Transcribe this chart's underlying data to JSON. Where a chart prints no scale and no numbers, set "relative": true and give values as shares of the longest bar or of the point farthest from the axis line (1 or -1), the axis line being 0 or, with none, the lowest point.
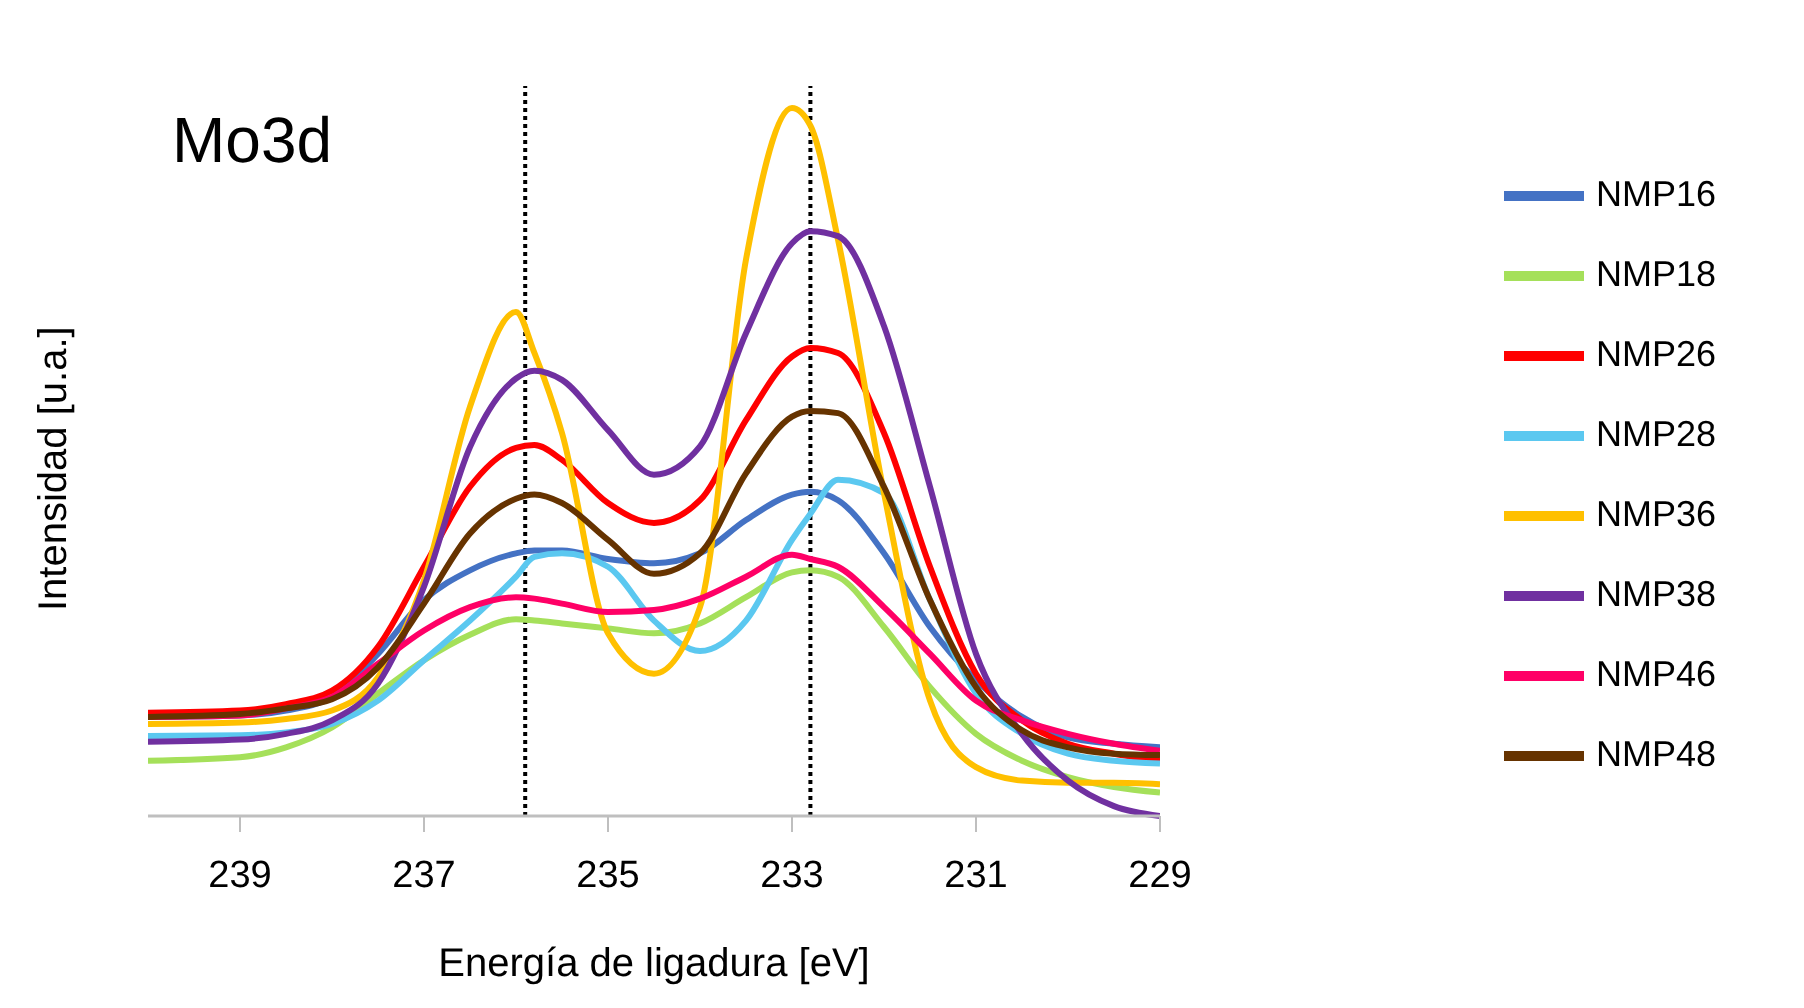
{
  "chart_data": {
    "type": "line",
    "title": "Mo3d",
    "xlabel": "Energía de ligadura [eV]",
    "ylabel": "Intensidad [u.a.]",
    "relative": true,
    "xlim": [
      240,
      229
    ],
    "xticks": [
      239,
      237,
      235,
      233,
      231,
      229
    ],
    "grid": false,
    "legend": "right",
    "marker": "none",
    "line_style": "solid",
    "x": [
      240,
      239,
      238.5,
      238,
      237.5,
      237,
      236.5,
      236,
      235.8,
      235.5,
      235,
      234.5,
      234,
      233.5,
      233,
      232.8,
      232.5,
      232,
      231.5,
      231,
      230.5,
      230,
      229.5,
      229
    ],
    "ref_lines": [
      {
        "axis": "x",
        "value": 235.9,
        "color": "#000000",
        "line_style": "dotted"
      },
      {
        "axis": "x",
        "value": 232.8,
        "color": "#000000",
        "line_style": "dotted"
      }
    ],
    "series": [
      {
        "name": "NMP16",
        "color": "#4472c4",
        "values": [
          0.14,
          0.142,
          0.149,
          0.168,
          0.229,
          0.305,
          0.347,
          0.371,
          0.375,
          0.375,
          0.363,
          0.357,
          0.371,
          0.418,
          0.454,
          0.458,
          0.446,
          0.371,
          0.267,
          0.192,
          0.14,
          0.111,
          0.102,
          0.097
        ]
      },
      {
        "name": "NMP18",
        "color": "#a5e05a",
        "values": [
          0.078,
          0.083,
          0.097,
          0.125,
          0.173,
          0.22,
          0.256,
          0.278,
          0.276,
          0.272,
          0.265,
          0.258,
          0.272,
          0.309,
          0.344,
          0.347,
          0.338,
          0.267,
          0.182,
          0.116,
          0.078,
          0.055,
          0.041,
          0.033
        ]
      },
      {
        "name": "NMP26",
        "color": "#ff0000",
        "values": [
          0.146,
          0.149,
          0.158,
          0.177,
          0.239,
          0.352,
          0.465,
          0.52,
          0.524,
          0.503,
          0.442,
          0.414,
          0.446,
          0.559,
          0.649,
          0.661,
          0.654,
          0.541,
          0.352,
          0.201,
          0.135,
          0.102,
          0.088,
          0.078
        ]
      },
      {
        "name": "NMP28",
        "color": "#5bc8f0",
        "values": [
          0.113,
          0.114,
          0.118,
          0.13,
          0.163,
          0.22,
          0.276,
          0.338,
          0.366,
          0.371,
          0.352,
          0.276,
          0.233,
          0.276,
          0.39,
          0.427,
          0.475,
          0.456,
          0.305,
          0.173,
          0.116,
          0.088,
          0.078,
          0.074
        ]
      },
      {
        "name": "NMP36",
        "color": "#ffc000",
        "values": [
          0.13,
          0.132,
          0.137,
          0.149,
          0.196,
          0.333,
          0.578,
          0.712,
          0.654,
          0.541,
          0.258,
          0.201,
          0.295,
          0.786,
          1.0,
          0.975,
          0.814,
          0.456,
          0.163,
          0.069,
          0.05,
          0.047,
          0.047,
          0.045
        ]
      },
      {
        "name": "NMP38",
        "color": "#7030a0",
        "values": [
          0.105,
          0.108,
          0.116,
          0.135,
          0.187,
          0.324,
          0.521,
          0.618,
          0.629,
          0.616,
          0.545,
          0.482,
          0.522,
          0.682,
          0.809,
          0.826,
          0.819,
          0.692,
          0.465,
          0.229,
          0.116,
          0.05,
          0.014,
          0.0
        ]
      },
      {
        "name": "NMP46",
        "color": "#ff0066",
        "values": [
          0.14,
          0.142,
          0.152,
          0.168,
          0.215,
          0.262,
          0.295,
          0.309,
          0.307,
          0.3,
          0.288,
          0.291,
          0.307,
          0.338,
          0.369,
          0.363,
          0.352,
          0.295,
          0.229,
          0.163,
          0.135,
          0.116,
          0.102,
          0.092
        ]
      },
      {
        "name": "NMP48",
        "color": "#663300",
        "values": [
          0.14,
          0.144,
          0.152,
          0.165,
          0.21,
          0.3,
          0.399,
          0.448,
          0.454,
          0.442,
          0.39,
          0.342,
          0.371,
          0.484,
          0.564,
          0.572,
          0.569,
          0.465,
          0.305,
          0.182,
          0.121,
          0.097,
          0.088,
          0.086
        ]
      }
    ]
  }
}
